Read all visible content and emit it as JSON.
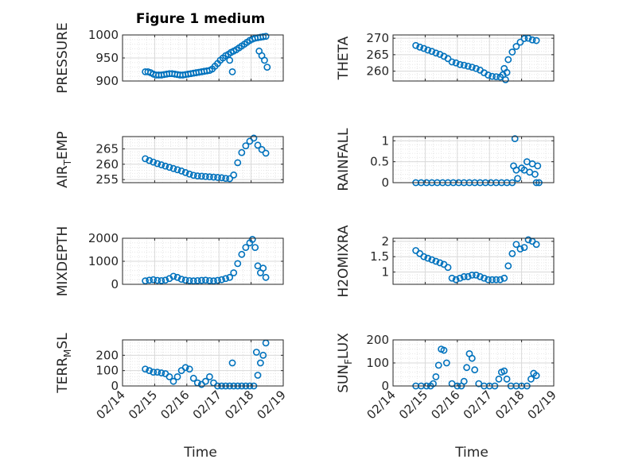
{
  "figure": {
    "title": "Figure 1 medium",
    "xlabel": "Time",
    "date_ticks": [
      "02/14",
      "02/15",
      "02/16",
      "02/17",
      "02/18",
      "02/19"
    ]
  },
  "colors": {
    "marker": "#0072BD",
    "grid": "#d9d9d9",
    "axis": "#262626"
  },
  "chart_data": [
    {
      "type": "scatter",
      "id": "pressure",
      "ylabel": "PRESSURE",
      "ylim": [
        900,
        1000
      ],
      "yticks": [
        900,
        950,
        1000
      ],
      "x": [
        "02/14 17:00",
        "02/14 19:00",
        "02/14 21:00",
        "02/14 23:00",
        "02/15 01:00",
        "02/15 03:00",
        "02/15 05:00",
        "02/15 07:00",
        "02/15 09:00",
        "02/15 11:00",
        "02/15 13:00",
        "02/15 15:00",
        "02/15 17:00",
        "02/15 19:00",
        "02/15 21:00",
        "02/15 23:00",
        "02/16 01:00",
        "02/16 03:00",
        "02/16 05:00",
        "02/16 07:00",
        "02/16 09:00",
        "02/16 11:00",
        "02/16 13:00",
        "02/16 15:00",
        "02/16 17:00",
        "02/16 19:00",
        "02/16 21:00",
        "02/16 23:00",
        "02/17 01:00",
        "02/17 03:00",
        "02/17 05:00",
        "02/17 07:00",
        "02/17 09:00",
        "02/17 11:00",
        "02/17 13:00",
        "02/17 15:00",
        "02/17 17:00",
        "02/17 19:00",
        "02/17 21:00",
        "02/17 23:00",
        "02/18 01:00",
        "02/18 03:00",
        "02/18 05:00",
        "02/18 07:00",
        "02/18 09:00",
        "02/18 11:00",
        "02/17 08:00",
        "02/17 10:00",
        "02/18 06:00",
        "02/18 08:00",
        "02/18 10:00",
        "02/18 12:00"
      ],
      "y": [
        920,
        920,
        918,
        915,
        913,
        913,
        913,
        914,
        915,
        916,
        916,
        915,
        914,
        913,
        913,
        914,
        915,
        916,
        917,
        918,
        919,
        920,
        921,
        922,
        923,
        926,
        932,
        938,
        945,
        950,
        955,
        958,
        962,
        965,
        968,
        972,
        976,
        980,
        984,
        988,
        991,
        993,
        994,
        995,
        996,
        997,
        945,
        920,
        965,
        955,
        945,
        930
      ]
    },
    {
      "type": "scatter",
      "id": "theta",
      "ylabel": "THETA",
      "ylim": [
        257,
        271
      ],
      "yticks": [
        260,
        265,
        270
      ],
      "x": [
        "02/14 17:00",
        "02/14 20:00",
        "02/14 23:00",
        "02/15 02:00",
        "02/15 05:00",
        "02/15 08:00",
        "02/15 11:00",
        "02/15 14:00",
        "02/15 17:00",
        "02/15 20:00",
        "02/15 23:00",
        "02/16 02:00",
        "02/16 05:00",
        "02/16 08:00",
        "02/16 11:00",
        "02/16 14:00",
        "02/16 17:00",
        "02/16 20:00",
        "02/16 23:00",
        "02/17 02:00",
        "02/17 05:00",
        "02/17 08:00",
        "02/17 11:00",
        "02/17 14:00",
        "02/17 17:00",
        "02/17 20:00",
        "02/17 23:00",
        "02/18 02:00",
        "02/18 05:00",
        "02/18 08:00",
        "02/18 11:00",
        "02/17 10:00",
        "02/17 12:00",
        "02/17 13:00"
      ],
      "y": [
        267.8,
        267.3,
        266.9,
        266.4,
        266.0,
        265.5,
        265.1,
        264.5,
        263.8,
        262.8,
        262.5,
        262.0,
        261.8,
        261.5,
        261.2,
        260.8,
        260.3,
        259.5,
        258.8,
        258.4,
        258.3,
        258.2,
        260.8,
        263.5,
        265.8,
        267.5,
        268.8,
        269.9,
        270.0,
        269.5,
        269.3,
        258.9,
        257.4,
        259.6
      ]
    },
    {
      "type": "scatter",
      "id": "air_temp",
      "ylabel": "AIR_TEMP",
      "ylim": [
        254,
        269
      ],
      "yticks": [
        255,
        260,
        265
      ],
      "x": [
        "02/14 17:00",
        "02/14 20:00",
        "02/14 23:00",
        "02/15 02:00",
        "02/15 05:00",
        "02/15 08:00",
        "02/15 11:00",
        "02/15 14:00",
        "02/15 17:00",
        "02/15 20:00",
        "02/15 23:00",
        "02/16 02:00",
        "02/16 05:00",
        "02/16 08:00",
        "02/16 11:00",
        "02/16 14:00",
        "02/16 17:00",
        "02/16 20:00",
        "02/16 23:00",
        "02/17 02:00",
        "02/17 05:00",
        "02/17 08:00",
        "02/17 11:00",
        "02/17 14:00",
        "02/17 17:00",
        "02/17 20:00",
        "02/17 23:00",
        "02/18 02:00",
        "02/18 05:00",
        "02/18 08:00",
        "02/18 11:00"
      ],
      "y": [
        261.8,
        261.2,
        260.7,
        260.2,
        259.8,
        259.4,
        259.0,
        258.6,
        258.2,
        257.8,
        257.3,
        256.8,
        256.4,
        256.2,
        256.1,
        256.0,
        255.9,
        255.8,
        255.7,
        255.6,
        255.4,
        255.3,
        256.5,
        260.5,
        263.8,
        266.0,
        267.5,
        268.5,
        266.2,
        264.8,
        263.6
      ]
    },
    {
      "type": "scatter",
      "id": "rainfall",
      "ylabel": "RAINFALL",
      "ylim": [
        0,
        1.1
      ],
      "yticks": [
        0,
        0.5,
        1
      ],
      "x": [
        "02/14 17:00",
        "02/14 21:00",
        "02/15 01:00",
        "02/15 05:00",
        "02/15 09:00",
        "02/15 13:00",
        "02/15 17:00",
        "02/15 21:00",
        "02/16 01:00",
        "02/16 05:00",
        "02/16 09:00",
        "02/16 13:00",
        "02/16 17:00",
        "02/16 21:00",
        "02/17 01:00",
        "02/17 05:00",
        "02/17 09:00",
        "02/17 13:00",
        "02/17 17:00",
        "02/17 21:00",
        "02/17 18:00",
        "02/17 20:00",
        "02/17 19:00",
        "02/18 00:00",
        "02/18 04:00",
        "02/18 06:00",
        "02/18 08:00",
        "02/18 10:00",
        "02/18 12:00",
        "02/18 02:00",
        "02/18 11:00",
        "02/18 13:00"
      ],
      "y": [
        0,
        0,
        0,
        0,
        0,
        0,
        0,
        0,
        0,
        0,
        0,
        0,
        0,
        0,
        0,
        0,
        0,
        0,
        0,
        0.1,
        0.4,
        0.3,
        1.05,
        0.35,
        0.5,
        0.25,
        0.45,
        0.2,
        0.4,
        0.3,
        0,
        0
      ]
    },
    {
      "type": "scatter",
      "id": "mixdepth",
      "ylabel": "MIXDEPTH",
      "ylim": [
        0,
        2000
      ],
      "yticks": [
        0,
        1000,
        2000
      ],
      "x": [
        "02/14 17:00",
        "02/14 20:00",
        "02/14 23:00",
        "02/15 02:00",
        "02/15 05:00",
        "02/15 08:00",
        "02/15 11:00",
        "02/15 14:00",
        "02/15 17:00",
        "02/15 20:00",
        "02/15 23:00",
        "02/16 02:00",
        "02/16 05:00",
        "02/16 08:00",
        "02/16 11:00",
        "02/16 14:00",
        "02/16 17:00",
        "02/16 20:00",
        "02/16 23:00",
        "02/17 02:00",
        "02/17 05:00",
        "02/17 08:00",
        "02/17 11:00",
        "02/17 14:00",
        "02/17 17:00",
        "02/17 20:00",
        "02/17 23:00",
        "02/18 01:00",
        "02/18 03:00",
        "02/18 05:00",
        "02/18 07:00",
        "02/18 09:00",
        "02/18 11:00"
      ],
      "y": [
        150,
        180,
        200,
        170,
        160,
        180,
        250,
        350,
        300,
        220,
        180,
        160,
        150,
        160,
        170,
        180,
        160,
        150,
        170,
        200,
        250,
        300,
        500,
        900,
        1300,
        1600,
        1800,
        1950,
        1600,
        800,
        500,
        700,
        300
      ]
    },
    {
      "type": "scatter",
      "id": "h2omixra",
      "ylabel": "H2OMIXRA",
      "ylim": [
        0.6,
        2.1
      ],
      "yticks": [
        1,
        1.5,
        2
      ],
      "x": [
        "02/14 17:00",
        "02/14 20:00",
        "02/14 23:00",
        "02/15 02:00",
        "02/15 05:00",
        "02/15 08:00",
        "02/15 11:00",
        "02/15 14:00",
        "02/15 17:00",
        "02/15 20:00",
        "02/15 23:00",
        "02/16 02:00",
        "02/16 05:00",
        "02/16 08:00",
        "02/16 11:00",
        "02/16 14:00",
        "02/16 17:00",
        "02/16 20:00",
        "02/16 23:00",
        "02/17 02:00",
        "02/17 05:00",
        "02/17 08:00",
        "02/17 11:00",
        "02/17 14:00",
        "02/17 17:00",
        "02/17 20:00",
        "02/17 23:00",
        "02/18 02:00",
        "02/18 05:00",
        "02/18 08:00",
        "02/18 11:00"
      ],
      "y": [
        1.7,
        1.6,
        1.5,
        1.45,
        1.4,
        1.35,
        1.3,
        1.25,
        1.15,
        0.8,
        0.75,
        0.8,
        0.85,
        0.85,
        0.9,
        0.9,
        0.85,
        0.8,
        0.75,
        0.75,
        0.75,
        0.75,
        0.8,
        1.2,
        1.6,
        1.9,
        1.75,
        1.8,
        2.05,
        2.0,
        1.9
      ]
    },
    {
      "type": "scatter",
      "id": "terr_msl",
      "ylabel": "TERR_MSL",
      "ylim": [
        0,
        300
      ],
      "yticks": [
        0,
        100,
        200
      ],
      "x": [
        "02/14 17:00",
        "02/14 20:00",
        "02/14 23:00",
        "02/15 02:00",
        "02/15 05:00",
        "02/15 08:00",
        "02/15 11:00",
        "02/15 14:00",
        "02/15 17:00",
        "02/15 20:00",
        "02/15 23:00",
        "02/16 02:00",
        "02/16 05:00",
        "02/16 08:00",
        "02/16 11:00",
        "02/16 14:00",
        "02/16 17:00",
        "02/16 20:00",
        "02/16 23:00",
        "02/17 02:00",
        "02/17 05:00",
        "02/17 08:00",
        "02/17 11:00",
        "02/17 14:00",
        "02/17 17:00",
        "02/17 20:00",
        "02/17 23:00",
        "02/18 02:00",
        "02/18 05:00",
        "02/18 07:00",
        "02/18 09:00",
        "02/18 11:00",
        "02/17 10:00",
        "02/18 04:00"
      ],
      "y": [
        110,
        100,
        90,
        90,
        85,
        80,
        60,
        30,
        60,
        100,
        120,
        110,
        50,
        20,
        10,
        30,
        60,
        20,
        0,
        0,
        0,
        0,
        0,
        0,
        0,
        0,
        0,
        0,
        70,
        150,
        200,
        280,
        150,
        220
      ]
    },
    {
      "type": "scatter",
      "id": "sun_flux",
      "ylabel": "SUN_FLUX",
      "ylim": [
        0,
        200
      ],
      "yticks": [
        0,
        100,
        200
      ],
      "x": [
        "02/14 17:00",
        "02/14 21:00",
        "02/15 01:00",
        "02/15 04:00",
        "02/15 06:00",
        "02/15 08:00",
        "02/15 10:00",
        "02/15 12:00",
        "02/15 14:00",
        "02/15 16:00",
        "02/15 20:00",
        "02/16 00:00",
        "02/16 03:00",
        "02/16 05:00",
        "02/16 07:00",
        "02/16 09:00",
        "02/16 11:00",
        "02/16 13:00",
        "02/16 16:00",
        "02/16 20:00",
        "02/17 00:00",
        "02/17 04:00",
        "02/17 07:00",
        "02/17 09:00",
        "02/17 11:00",
        "02/17 13:00",
        "02/17 16:00",
        "02/17 20:00",
        "02/18 00:00",
        "02/18 04:00",
        "02/18 07:00",
        "02/18 09:00",
        "02/18 11:00"
      ],
      "y": [
        0,
        0,
        0,
        0,
        10,
        40,
        90,
        160,
        155,
        100,
        10,
        0,
        0,
        20,
        80,
        140,
        120,
        70,
        10,
        0,
        0,
        0,
        30,
        60,
        65,
        30,
        0,
        0,
        0,
        0,
        30,
        55,
        45
      ]
    }
  ]
}
